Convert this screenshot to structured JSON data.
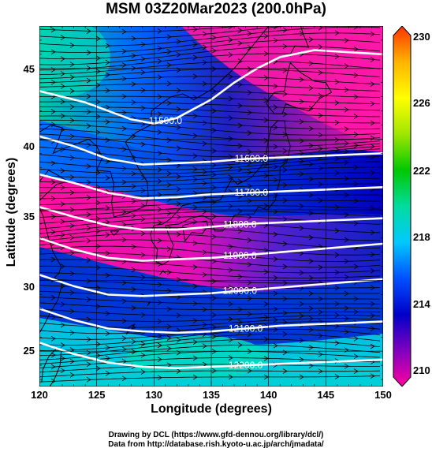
{
  "title": "MSM 03Z20Mar2023 (200.0hPa)",
  "map": {
    "xlabel": "Longitude (degrees)",
    "ylabel": "Latitude  (degrees)",
    "lon_range": [
      120,
      150
    ],
    "lat_range": [
      22.5,
      48
    ],
    "x_ticks": [
      "120",
      "125",
      "130",
      "135",
      "140",
      "145",
      "150"
    ],
    "y_ticks": [
      "25",
      "30",
      "35",
      "40",
      "45"
    ],
    "contour_labels": [
      "11500.0",
      "11600.0",
      "11700.0",
      "11800.0",
      "11900.0",
      "12000.0",
      "12100.0",
      "12200.0"
    ],
    "contour_levels_m": [
      11500,
      11600,
      11700,
      11800,
      11900,
      12000,
      12100,
      12200
    ],
    "field": "temperature (K)",
    "overlay": [
      "geopotential height contours (white)",
      "wind streamlines (black)",
      "coastlines"
    ]
  },
  "colorbar": {
    "ticks": [
      "230",
      "226",
      "222",
      "218",
      "214",
      "210"
    ],
    "range": [
      210,
      230
    ],
    "colors": [
      "#ff00a0",
      "#0000c8",
      "#0050ff",
      "#00c8ff",
      "#00dca0",
      "#00c800",
      "#a0e600",
      "#ffff00",
      "#ffb400",
      "#ff3200"
    ]
  },
  "credits": {
    "line1": "Drawing by DCL (https://www.gfd-dennou.org/library/dcl/)",
    "line2": "Data from http://database.rish.kyoto-u.ac.jp/arch/jmadata/"
  }
}
